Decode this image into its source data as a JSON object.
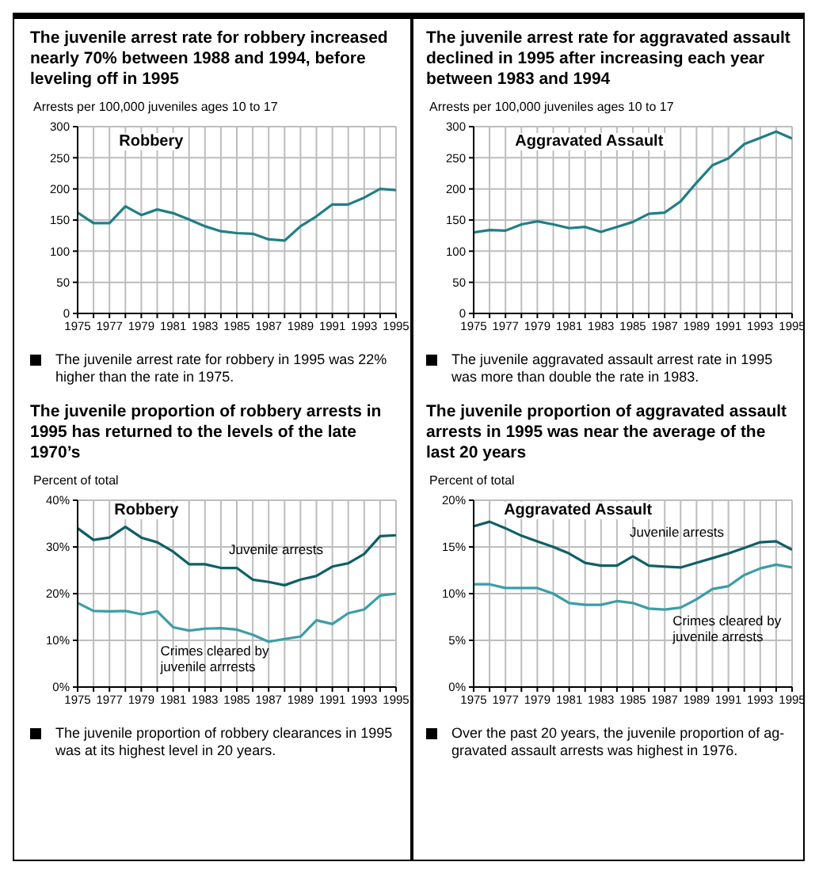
{
  "chart_data": [
    {
      "type": "line",
      "title": "The juvenile arrest rate for robbery increased nearly 70% between 1988 and 1994, before leveling off in 1995",
      "ylabel": "Arrests per 100,000 juveniles ages 10 to 17",
      "annotations": [
        "Robbery",
        "The juvenile arrest rate for robbery in 1995 was 22% higher than the rate in 1975."
      ],
      "x": [
        1975,
        1976,
        1977,
        1978,
        1979,
        1980,
        1981,
        1982,
        1983,
        1984,
        1985,
        1986,
        1987,
        1988,
        1989,
        1990,
        1991,
        1992,
        1993,
        1994,
        1995
      ],
      "color": "#1f7f86",
      "values": [
        162,
        145,
        145,
        172,
        158,
        167,
        161,
        151,
        140,
        132,
        129,
        128,
        119,
        117,
        140,
        156,
        175,
        175,
        186,
        200,
        198
      ],
      "xlim": [
        1975,
        1995
      ],
      "xticks": [
        1975,
        {
          "value": 1976,
          "label": null
        },
        1977,
        {
          "value": 1978,
          "label": null
        },
        1979,
        {
          "value": 1980,
          "label": null
        },
        1981,
        {
          "value": 1982,
          "label": null
        },
        1983,
        {
          "value": 1984,
          "label": null
        },
        1985,
        {
          "value": 1986,
          "label": null
        },
        1987,
        {
          "value": 1988,
          "label": null
        },
        1989,
        {
          "value": 1990,
          "label": null
        },
        1991,
        {
          "value": 1992,
          "label": null
        },
        1993,
        {
          "value": 1994,
          "label": null
        },
        1995
      ],
      "ylim": [
        0,
        300
      ],
      "yticks": [
        0,
        50,
        100,
        150,
        200,
        250,
        300
      ],
      "grid": true
    },
    {
      "type": "line",
      "title": "The juvenile arrest rate for aggravated assault declined in 1995 after increasing each year between 1983 and 1994",
      "ylabel": "Arrests per 100,000 juveniles ages 10 to 17",
      "annotations": [
        "Aggravated Assault",
        "The juvenile aggravated assault arrest rate in 1995 was more than double the rate in 1983."
      ],
      "x": [
        1975,
        1976,
        1977,
        1978,
        1979,
        1980,
        1981,
        1982,
        1983,
        1984,
        1985,
        1986,
        1987,
        1988,
        1989,
        1990,
        1991,
        1992,
        1993,
        1994,
        1995
      ],
      "color": "#1f7f86",
      "values": [
        130,
        134,
        133,
        143,
        148,
        143,
        137,
        139,
        131,
        139,
        147,
        160,
        162,
        180,
        210,
        238,
        249,
        272,
        282,
        292,
        281
      ],
      "xlim": [
        1975,
        1995
      ],
      "xticks": [
        1975,
        {
          "value": 1976,
          "label": null
        },
        1977,
        {
          "value": 1978,
          "label": null
        },
        1979,
        {
          "value": 1980,
          "label": null
        },
        1981,
        {
          "value": 1982,
          "label": null
        },
        1983,
        {
          "value": 1984,
          "label": null
        },
        1985,
        {
          "value": 1986,
          "label": null
        },
        1987,
        {
          "value": 1988,
          "label": null
        },
        1989,
        {
          "value": 1990,
          "label": null
        },
        1991,
        {
          "value": 1992,
          "label": null
        },
        1993,
        {
          "value": 1994,
          "label": null
        },
        1995
      ],
      "ylim": [
        0,
        300
      ],
      "yticks": [
        0,
        50,
        100,
        150,
        200,
        250,
        300
      ],
      "grid": true
    },
    {
      "type": "line",
      "title": "The juvenile proportion of robbery arrests in 1995 has returned to the levels of the late 1970’s",
      "ylabel": "Percent of total",
      "annotations": [
        "Robbery",
        "The juvenile proportion of robbery clearances in 1995 was at its highest level in 20 years."
      ],
      "x": [
        1975,
        1976,
        1977,
        1978,
        1979,
        1980,
        1981,
        1982,
        1983,
        1984,
        1985,
        1986,
        1987,
        1988,
        1989,
        1990,
        1991,
        1992,
        1993,
        1994,
        1995
      ],
      "series": [
        {
          "name": "Juvenile arrests",
          "color": "#0f5f66",
          "values": [
            34,
            31.5,
            32,
            34.3,
            32,
            31,
            29,
            26.3,
            26.3,
            25.5,
            25.5,
            23,
            22.5,
            21.8,
            23,
            23.8,
            25.8,
            26.5,
            28.5,
            32.3,
            32.5
          ]
        },
        {
          "name": "Crimes cleared by juvenile arrrests",
          "color": "#3a9ea6",
          "values": [
            18,
            16.3,
            16.2,
            16.3,
            15.6,
            16.2,
            12.8,
            12.1,
            12.5,
            12.6,
            12.3,
            11.2,
            9.7,
            10.3,
            10.8,
            14.3,
            13.5,
            15.8,
            16.6,
            19.6,
            20
          ]
        }
      ],
      "xlim": [
        1975,
        1995
      ],
      "xticks": [
        1975,
        {
          "value": 1976,
          "label": null
        },
        1977,
        {
          "value": 1978,
          "label": null
        },
        1979,
        {
          "value": 1980,
          "label": null
        },
        1981,
        {
          "value": 1982,
          "label": null
        },
        1983,
        {
          "value": 1984,
          "label": null
        },
        1985,
        {
          "value": 1986,
          "label": null
        },
        1987,
        {
          "value": 1988,
          "label": null
        },
        1989,
        {
          "value": 1990,
          "label": null
        },
        1991,
        {
          "value": 1992,
          "label": null
        },
        1993,
        {
          "value": 1994,
          "label": null
        },
        1995
      ],
      "ylim": [
        0,
        40
      ],
      "yticks": [
        {
          "value": 0,
          "label": "0%"
        },
        {
          "value": 10,
          "label": "10%"
        },
        {
          "value": 20,
          "label": "20%"
        },
        {
          "value": 30,
          "label": "30%"
        },
        {
          "value": 40,
          "label": "40%"
        }
      ],
      "grid": true
    },
    {
      "type": "line",
      "title": "The juvenile proportion of aggravated assault arrests in 1995 was near the average of the last 20 years",
      "ylabel": "Percent of total",
      "annotations": [
        "Aggravated Assault",
        "Over the past 20 years, the juvenile proportion of ag-gravated assault arrests was highest in 1976."
      ],
      "x": [
        1975,
        1976,
        1977,
        1978,
        1979,
        1980,
        1981,
        1982,
        1983,
        1984,
        1985,
        1986,
        1987,
        1988,
        1989,
        1990,
        1991,
        1992,
        1993,
        1994,
        1995
      ],
      "series": [
        {
          "name": "Juvenile arrests",
          "color": "#0f5f66",
          "values": [
            17.2,
            17.7,
            17,
            16.2,
            15.6,
            15,
            14.3,
            13.3,
            13,
            13,
            14,
            13,
            12.9,
            12.8,
            13.3,
            13.8,
            14.3,
            14.9,
            15.5,
            15.6,
            14.7
          ]
        },
        {
          "name": "Crimes cleared by juvenile arrests",
          "color": "#3a9ea6",
          "values": [
            11,
            11,
            10.6,
            10.6,
            10.6,
            10,
            9,
            8.8,
            8.8,
            9.2,
            9,
            8.4,
            8.3,
            8.5,
            9.4,
            10.5,
            10.8,
            12,
            12.7,
            13.1,
            12.8
          ]
        }
      ],
      "xlim": [
        1975,
        1995
      ],
      "xticks": [
        1975,
        {
          "value": 1976,
          "label": null
        },
        1977,
        {
          "value": 1978,
          "label": null
        },
        1979,
        {
          "value": 1980,
          "label": null
        },
        1981,
        {
          "value": 1982,
          "label": null
        },
        1983,
        {
          "value": 1984,
          "label": null
        },
        1985,
        {
          "value": 1986,
          "label": null
        },
        1987,
        {
          "value": 1988,
          "label": null
        },
        1989,
        {
          "value": 1990,
          "label": null
        },
        1991,
        {
          "value": 1992,
          "label": null
        },
        1993,
        {
          "value": 1994,
          "label": null
        },
        1995
      ],
      "ylim": [
        0,
        20
      ],
      "yticks": [
        {
          "value": 0,
          "label": "0%"
        },
        {
          "value": 5,
          "label": "5%"
        },
        {
          "value": 10,
          "label": "10%"
        },
        {
          "value": 15,
          "label": "15%"
        },
        {
          "value": 20,
          "label": "20%"
        }
      ],
      "grid": true
    }
  ]
}
